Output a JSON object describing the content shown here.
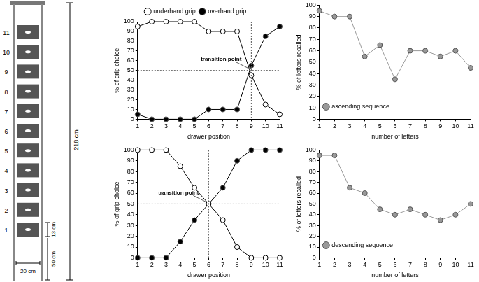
{
  "diagram": {
    "drawer_labels": [
      1,
      2,
      3,
      4,
      5,
      6,
      7,
      8,
      9,
      10,
      11
    ],
    "height_label": "218 cm",
    "drawer_height_label": "13 cm",
    "floor_gap_label": "50 cm",
    "width_label": "20 cm"
  },
  "chart_data": [
    {
      "type": "line",
      "x": [
        1,
        2,
        3,
        4,
        5,
        6,
        7,
        8,
        9,
        10,
        11
      ],
      "series": [
        {
          "name": "underhand grip",
          "color": "#000000",
          "marker": "circle_open",
          "values": [
            95,
            100,
            100,
            100,
            100,
            90,
            90,
            90,
            45,
            15,
            5
          ]
        },
        {
          "name": "overhand grip",
          "color": "#000000",
          "marker": "circle",
          "values": [
            5,
            0,
            0,
            0,
            0,
            10,
            10,
            10,
            55,
            85,
            95
          ]
        }
      ],
      "xlabel": "drawer position",
      "ylabel": "% of grip choice",
      "xlim": [
        1,
        11
      ],
      "xticks": [
        1,
        2,
        3,
        4,
        5,
        6,
        7,
        8,
        9,
        10,
        11
      ],
      "ylim": [
        0,
        100
      ],
      "yticks": [
        0,
        10,
        20,
        30,
        40,
        50,
        60,
        70,
        80,
        90,
        100
      ],
      "grid": false,
      "legend": "top",
      "annotations": [
        {
          "text": "transition point",
          "x": 9,
          "y": 50
        }
      ]
    },
    {
      "type": "line",
      "x": [
        1,
        2,
        3,
        4,
        5,
        6,
        7,
        8,
        9,
        10,
        11
      ],
      "series": [
        {
          "name": "ascending sequence",
          "color": "#999999",
          "marker": "circle",
          "values": [
            95,
            90,
            90,
            55,
            65,
            35,
            60,
            60,
            55,
            60,
            45
          ]
        }
      ],
      "xlabel": "number of letters",
      "ylabel": "% of letters recalled",
      "xlim": [
        1,
        11
      ],
      "xticks": [
        1,
        2,
        3,
        4,
        5,
        6,
        7,
        8,
        9,
        10,
        11
      ],
      "ylim": [
        0,
        100
      ],
      "yticks": [
        0,
        10,
        20,
        30,
        40,
        50,
        60,
        70,
        80,
        90,
        100
      ],
      "grid": false,
      "legend": "upper right"
    },
    {
      "type": "line",
      "x": [
        1,
        2,
        3,
        4,
        5,
        6,
        7,
        8,
        9,
        10,
        11
      ],
      "series": [
        {
          "color": "#000000",
          "marker": "circle_open",
          "values": [
            100,
            100,
            100,
            85,
            65,
            50,
            35,
            10,
            0,
            0,
            0
          ]
        },
        {
          "color": "#000000",
          "marker": "circle",
          "values": [
            0,
            0,
            0,
            15,
            35,
            50,
            65,
            90,
            100,
            100,
            100
          ]
        }
      ],
      "xlabel": "drawer position",
      "ylabel": "% of grip choice",
      "xlim": [
        1,
        11
      ],
      "xticks": [
        1,
        2,
        3,
        4,
        5,
        6,
        7,
        8,
        9,
        10,
        11
      ],
      "ylim": [
        0,
        100
      ],
      "yticks": [
        0,
        10,
        20,
        30,
        40,
        50,
        60,
        70,
        80,
        90,
        100
      ],
      "grid": false,
      "annotations": [
        {
          "text": "transition point",
          "x": 6,
          "y": 50
        }
      ]
    },
    {
      "type": "line",
      "x": [
        1,
        2,
        3,
        4,
        5,
        6,
        7,
        8,
        9,
        10,
        11
      ],
      "series": [
        {
          "name": "descending sequence",
          "color": "#999999",
          "marker": "circle",
          "values": [
            95,
            95,
            65,
            60,
            45,
            40,
            45,
            40,
            35,
            40,
            50
          ]
        }
      ],
      "xlabel": "number of letters",
      "ylabel": "% of letters recalled",
      "xlim": [
        1,
        11
      ],
      "xticks": [
        1,
        2,
        3,
        4,
        5,
        6,
        7,
        8,
        9,
        10,
        11
      ],
      "ylim": [
        0,
        100
      ],
      "yticks": [
        0,
        10,
        20,
        30,
        40,
        50,
        60,
        70,
        80,
        90,
        100
      ],
      "grid": false,
      "legend": "upper right"
    }
  ]
}
